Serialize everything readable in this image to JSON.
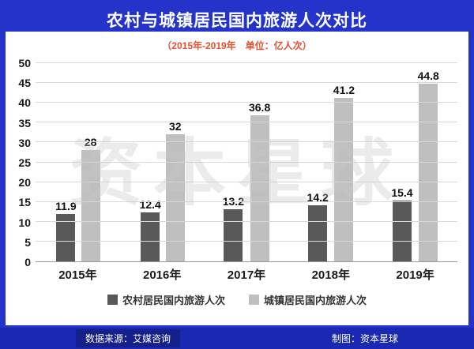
{
  "header": {
    "title": "农村与城镇居民国内旅游人次对比",
    "subtitle": "（2015年-2019年　单位：亿人次）"
  },
  "watermark": "资本星球",
  "footer": {
    "source": "数据来源：艾媒咨询",
    "credit": "制图：资本星球"
  },
  "colors": {
    "frame": "#2433c9",
    "footer-bar": "#1b29b2",
    "subtitle": "#e8502e",
    "grid": "#d9d9d9",
    "axis": "#9a9a9a",
    "watermark": "#c8c8c8"
  },
  "chart_data": {
    "type": "bar",
    "title": "农村与城镇居民国内旅游人次对比",
    "categories": [
      "2015年",
      "2016年",
      "2017年",
      "2018年",
      "2019年"
    ],
    "series": [
      {
        "name": "农村居民国内旅游人次",
        "color": "#595959",
        "values": [
          11.9,
          12.4,
          13.2,
          14.2,
          15.4
        ]
      },
      {
        "name": "城镇居民国内旅游人次",
        "color": "#bfbfbf",
        "values": [
          28,
          32,
          36.8,
          41.2,
          44.8
        ]
      }
    ],
    "xlabel": "",
    "ylabel": "亿人次",
    "ylim": [
      0,
      50
    ],
    "yticks": [
      0,
      5,
      10,
      15,
      20,
      25,
      30,
      35,
      40,
      45,
      50
    ],
    "grid": true,
    "legend_position": "bottom",
    "value_labels": true
  }
}
